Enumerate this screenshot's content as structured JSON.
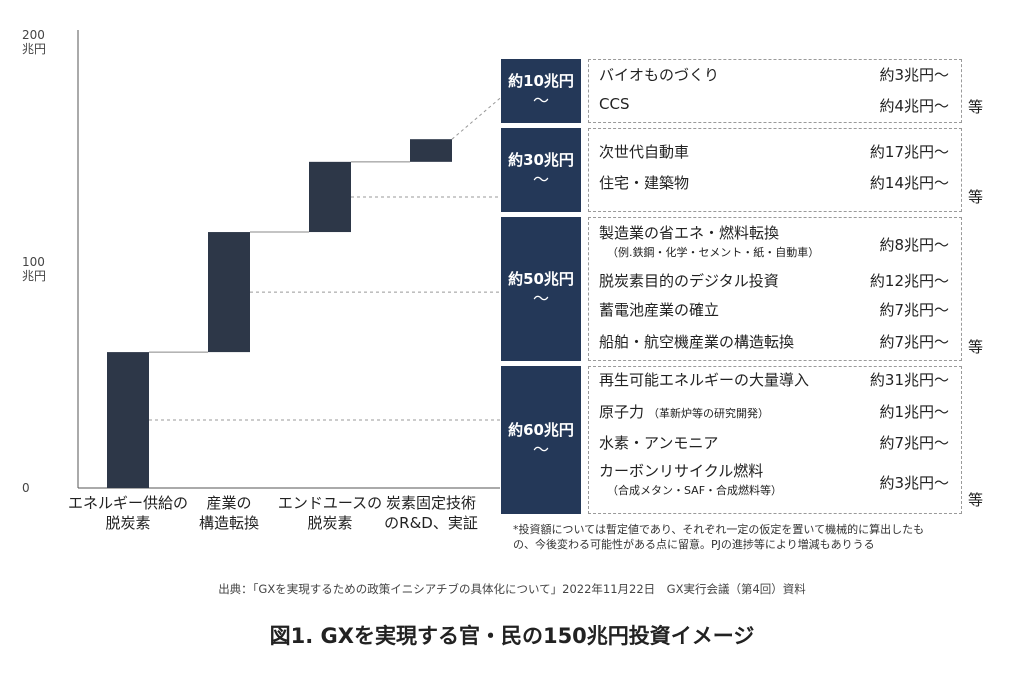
{
  "chart_data": {
    "type": "bar",
    "subtype": "waterfall",
    "y_axis": {
      "range": [
        0,
        200
      ],
      "ticks": [
        {
          "value": 0,
          "label": "0",
          "unit": ""
        },
        {
          "value": 100,
          "label": "100",
          "unit": "兆円"
        },
        {
          "value": 200,
          "label": "200",
          "unit": "兆円"
        }
      ]
    },
    "categories": [
      {
        "label_lines": [
          "エネルギー供給の",
          "脱炭素"
        ],
        "start": 0,
        "end": 60
      },
      {
        "label_lines": [
          "産業の",
          "構造転換"
        ],
        "start": 60,
        "end": 113
      },
      {
        "label_lines": [
          "エンドユースの",
          "脱炭素"
        ],
        "start": 113,
        "end": 144
      },
      {
        "label_lines": [
          "炭素固定技術",
          "のR&D、実証"
        ],
        "start": 144,
        "end": 154
      }
    ],
    "bar_color": "#2d3748",
    "groups": [
      {
        "total_label": "約10兆円",
        "tilde": "～",
        "links_to_category": 3,
        "etc": "等",
        "items": [
          {
            "name": "バイオものづくり",
            "amount": "約3兆円～"
          },
          {
            "name": "CCS",
            "amount": "約4兆円～"
          }
        ]
      },
      {
        "total_label": "約30兆円",
        "tilde": "～",
        "links_to_category": 2,
        "etc": "等",
        "items": [
          {
            "name": "次世代自動車",
            "amount": "約17兆円～"
          },
          {
            "name": "住宅・建築物",
            "amount": "約14兆円～"
          }
        ]
      },
      {
        "total_label": "約50兆円",
        "tilde": "～",
        "links_to_category": 1,
        "etc": "等",
        "items": [
          {
            "name": "製造業の省エネ・燃料転換",
            "sub": "（例.鉄鋼・化学・セメント・紙・自動車）",
            "amount": "約8兆円～"
          },
          {
            "name": "脱炭素目的のデジタル投資",
            "amount": "約12兆円～"
          },
          {
            "name": "蓄電池産業の確立",
            "amount": "約7兆円～"
          },
          {
            "name": "船舶・航空機産業の構造転換",
            "amount": "約7兆円～"
          }
        ]
      },
      {
        "total_label": "約60兆円",
        "tilde": "～",
        "links_to_category": 0,
        "etc": "等",
        "items": [
          {
            "name": "再生可能エネルギーの大量導入",
            "amount": "約31兆円～"
          },
          {
            "name": "原子力",
            "sub_inline": "（革新炉等の研究開発）",
            "amount": "約1兆円～"
          },
          {
            "name": "水素・アンモニア",
            "amount": "約7兆円～"
          },
          {
            "name": "カーボンリサイクル燃料",
            "sub": "（合成メタン・SAF・合成燃料等）",
            "amount": "約3兆円～"
          }
        ]
      }
    ],
    "footnote_lines": [
      "*投資額については暫定値であり、それぞれ一定の仮定を置いて機械的に算出したも",
      "の、今後変わる可能性がある点に留意。PJの進捗等により増減もありうる"
    ],
    "source": "出典：「GXを実現するための政策イニシアチブの具体化について」2022年11月22日　GX実行会議（第4回）資料",
    "title": "図1. GXを実現する官・民の150兆円投資イメージ"
  }
}
